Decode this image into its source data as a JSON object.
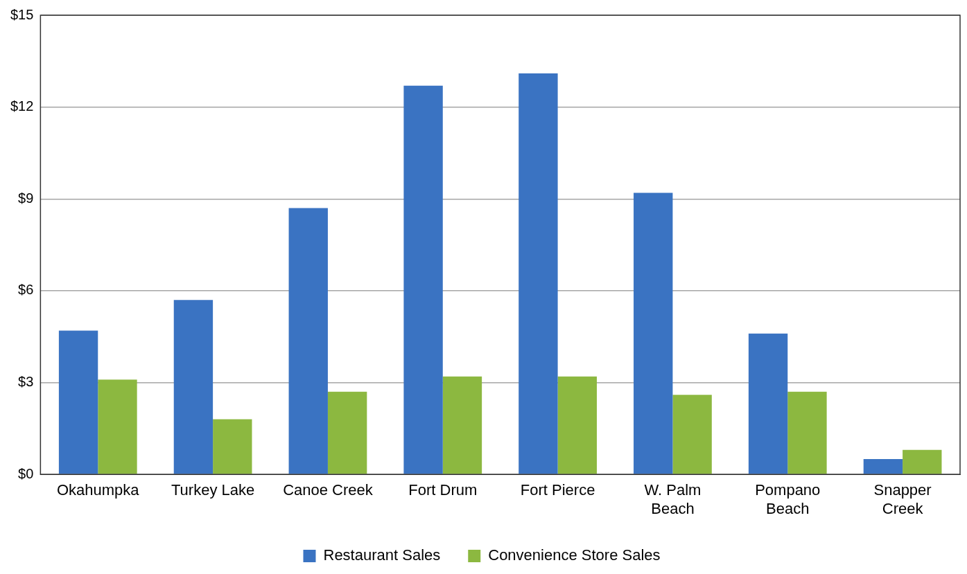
{
  "chart_data": {
    "type": "bar",
    "categories": [
      "Okahumpka",
      "Turkey Lake",
      "Canoe Creek",
      "Fort Drum",
      "Fort Pierce",
      "W. Palm Beach",
      "Pompano Beach",
      "Snapper Creek"
    ],
    "series": [
      {
        "name": "Restaurant Sales",
        "color": "#3a73c2",
        "values": [
          4.7,
          5.7,
          8.7,
          12.7,
          13.1,
          9.2,
          4.6,
          0.5
        ]
      },
      {
        "name": "Convenience Store Sales",
        "color": "#8cb840",
        "values": [
          3.1,
          1.8,
          2.7,
          3.2,
          3.2,
          2.6,
          2.7,
          0.8
        ]
      }
    ],
    "ylim": [
      0,
      15
    ],
    "yticks": [
      {
        "value": 0,
        "label": "$0"
      },
      {
        "value": 3,
        "label": "$3"
      },
      {
        "value": 6,
        "label": "$6"
      },
      {
        "value": 9,
        "label": "$9"
      },
      {
        "value": 12,
        "label": "$12"
      },
      {
        "value": 15,
        "label": "$15"
      }
    ],
    "grid": "y",
    "legend": "bottom"
  }
}
